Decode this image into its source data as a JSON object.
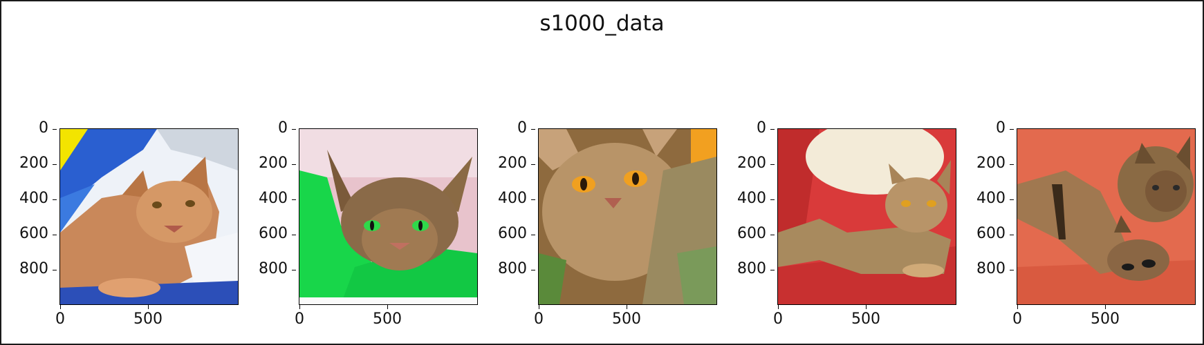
{
  "figure": {
    "title": "s1000_data"
  },
  "axes": {
    "y_ticks": [
      "0",
      "200",
      "400",
      "600",
      "800"
    ],
    "y_tick_values": [
      0,
      200,
      400,
      600,
      800
    ],
    "x_ticks": [
      "0",
      "500"
    ],
    "x_tick_values": [
      0,
      500
    ],
    "extent": 1000
  },
  "panels": [
    {
      "subject": "orange tabby cat lying on blue and white fabric",
      "background_color": "#e8eef5",
      "accent_color": "#2b56c8"
    },
    {
      "subject": "ticked cat with green eyes on green blanket",
      "background_color": "#e9c7cf",
      "accent_color": "#17d44a"
    },
    {
      "subject": "ruddy cat with amber eyes close-up",
      "background_color": "#b99a6c",
      "accent_color": "#f0a020"
    },
    {
      "subject": "ruddy cat lying on red cushion",
      "background_color": "#d63a3a",
      "accent_color": "#f0e7d4"
    },
    {
      "subject": "two ruddy cats on orange blanket",
      "background_color": "#e16a4e",
      "accent_color": "#6b4a2c"
    }
  ]
}
